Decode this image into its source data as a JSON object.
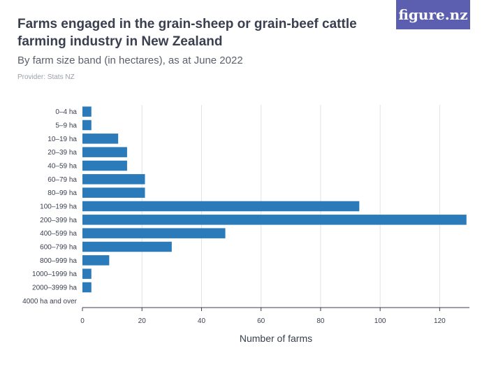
{
  "header": {
    "title": "Farms engaged in the grain-sheep or grain-beef cattle farming industry in New Zealand",
    "subtitle": "By farm size band (in hectares), as at June 2022",
    "provider": "Provider: Stats NZ"
  },
  "brand": {
    "logo_text": "figure.nz",
    "color": "#5c5fb0"
  },
  "chart_data": {
    "type": "bar",
    "orientation": "horizontal",
    "categories": [
      "0–4 ha",
      "5–9 ha",
      "10–19 ha",
      "20–39 ha",
      "40–59 ha",
      "60–79 ha",
      "80–99 ha",
      "100–199 ha",
      "200–399 ha",
      "400–599 ha",
      "600–799 ha",
      "800–999 ha",
      "1000–1999 ha",
      "2000–3999 ha",
      "4000 ha and over"
    ],
    "values": [
      3,
      3,
      12,
      15,
      15,
      21,
      21,
      93,
      129,
      48,
      30,
      9,
      3,
      3,
      0
    ],
    "xlabel": "Number of farms",
    "xlim": [
      0,
      130
    ],
    "xticks": [
      0,
      20,
      40,
      60,
      80,
      100,
      120
    ],
    "grid": true,
    "bar_color": "#2b7bba",
    "grid_color": "#e2e2e2",
    "axis_color": "#3a3f4f"
  }
}
